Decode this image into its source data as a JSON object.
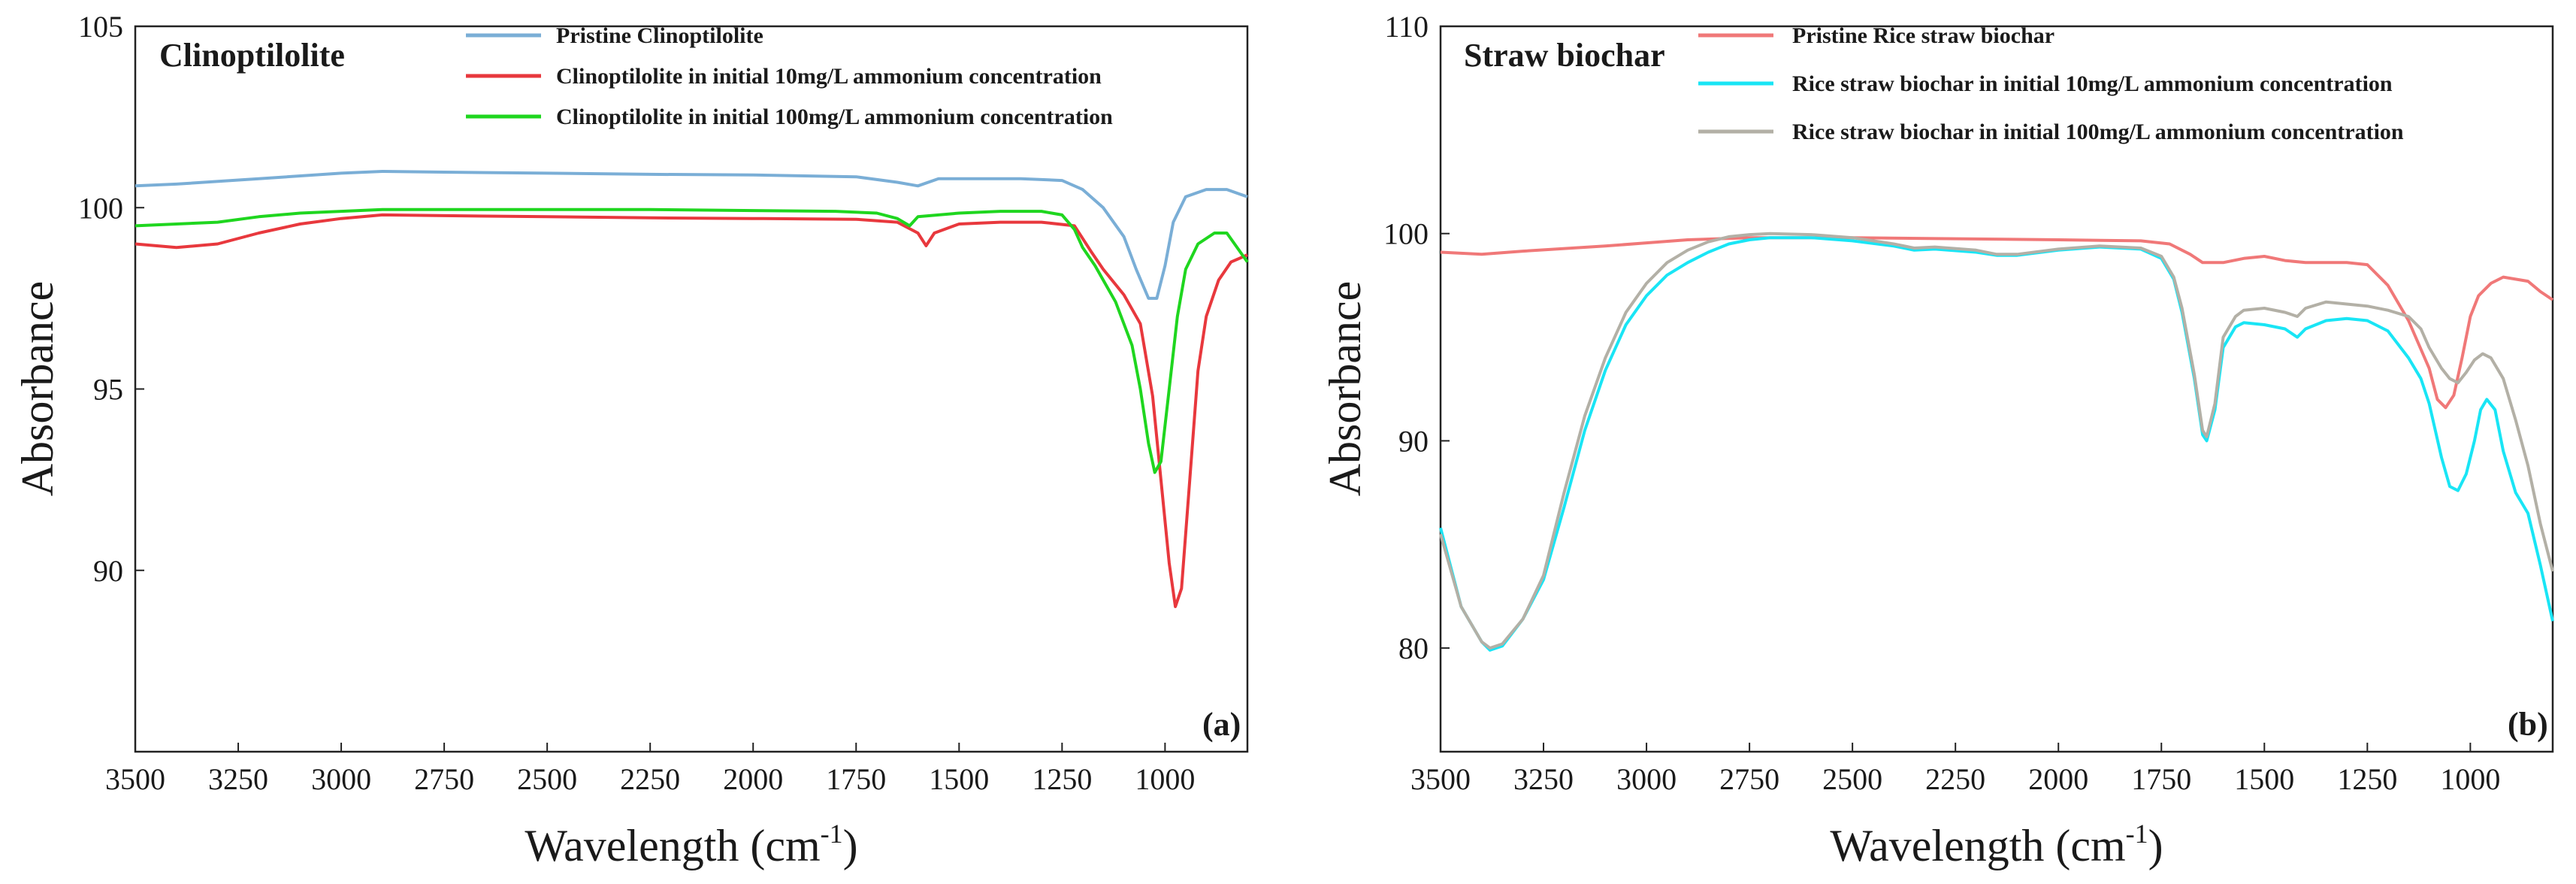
{
  "chart_data": [
    {
      "type": "line",
      "panel_label": "(a)",
      "title": "Clinoptilolite",
      "xlabel": "Wavelength (cm",
      "xlabel_sup": "-1",
      "xlabel_close": ")",
      "ylabel": "Absorbance",
      "xlim": [
        3500,
        800
      ],
      "ylim": [
        85,
        105
      ],
      "xticks": [
        3500,
        3250,
        3000,
        2750,
        2500,
        2250,
        2000,
        1750,
        1500,
        1250,
        1000
      ],
      "yticks": [
        90,
        95,
        100,
        105
      ],
      "legend_position": "top-right",
      "series": [
        {
          "name": "Pristine Clinoptilolite",
          "color": "#7aaed6",
          "points": [
            [
              3500,
              100.6
            ],
            [
              3400,
              100.65
            ],
            [
              3200,
              100.8
            ],
            [
              3000,
              100.95
            ],
            [
              2900,
              101.0
            ],
            [
              2750,
              100.98
            ],
            [
              2500,
              100.95
            ],
            [
              2250,
              100.92
            ],
            [
              2000,
              100.9
            ],
            [
              1750,
              100.85
            ],
            [
              1650,
              100.7
            ],
            [
              1600,
              100.6
            ],
            [
              1550,
              100.8
            ],
            [
              1450,
              100.8
            ],
            [
              1350,
              100.8
            ],
            [
              1250,
              100.75
            ],
            [
              1200,
              100.5
            ],
            [
              1150,
              100.0
            ],
            [
              1100,
              99.2
            ],
            [
              1070,
              98.3
            ],
            [
              1040,
              97.5
            ],
            [
              1020,
              97.5
            ],
            [
              1000,
              98.4
            ],
            [
              980,
              99.6
            ],
            [
              950,
              100.3
            ],
            [
              900,
              100.5
            ],
            [
              850,
              100.5
            ],
            [
              800,
              100.3
            ]
          ]
        },
        {
          "name": "Clinoptilolite in initial 10mg/L ammonium concentration",
          "color": "#e8383d",
          "points": [
            [
              3500,
              99.0
            ],
            [
              3400,
              98.9
            ],
            [
              3300,
              99.0
            ],
            [
              3200,
              99.3
            ],
            [
              3100,
              99.55
            ],
            [
              3000,
              99.7
            ],
            [
              2900,
              99.8
            ],
            [
              2750,
              99.78
            ],
            [
              2500,
              99.75
            ],
            [
              2250,
              99.72
            ],
            [
              2000,
              99.7
            ],
            [
              1750,
              99.68
            ],
            [
              1650,
              99.6
            ],
            [
              1600,
              99.3
            ],
            [
              1580,
              98.95
            ],
            [
              1560,
              99.3
            ],
            [
              1500,
              99.55
            ],
            [
              1400,
              99.6
            ],
            [
              1300,
              99.6
            ],
            [
              1220,
              99.5
            ],
            [
              1180,
              98.8
            ],
            [
              1150,
              98.3
            ],
            [
              1100,
              97.6
            ],
            [
              1060,
              96.8
            ],
            [
              1030,
              94.8
            ],
            [
              1010,
              92.5
            ],
            [
              990,
              90.2
            ],
            [
              975,
              89.0
            ],
            [
              960,
              89.5
            ],
            [
              940,
              92.5
            ],
            [
              920,
              95.5
            ],
            [
              900,
              97.0
            ],
            [
              870,
              98.0
            ],
            [
              840,
              98.5
            ],
            [
              800,
              98.7
            ]
          ]
        },
        {
          "name": "Clinoptilolite in initial 100mg/L ammonium concentration",
          "color": "#1fd61f",
          "points": [
            [
              3500,
              99.5
            ],
            [
              3400,
              99.55
            ],
            [
              3300,
              99.6
            ],
            [
              3200,
              99.75
            ],
            [
              3100,
              99.85
            ],
            [
              3000,
              99.9
            ],
            [
              2900,
              99.95
            ],
            [
              2750,
              99.95
            ],
            [
              2500,
              99.95
            ],
            [
              2250,
              99.95
            ],
            [
              2000,
              99.92
            ],
            [
              1800,
              99.9
            ],
            [
              1700,
              99.85
            ],
            [
              1650,
              99.7
            ],
            [
              1620,
              99.5
            ],
            [
              1600,
              99.75
            ],
            [
              1500,
              99.85
            ],
            [
              1400,
              99.9
            ],
            [
              1300,
              99.9
            ],
            [
              1250,
              99.8
            ],
            [
              1220,
              99.4
            ],
            [
              1200,
              98.9
            ],
            [
              1170,
              98.4
            ],
            [
              1120,
              97.4
            ],
            [
              1080,
              96.2
            ],
            [
              1060,
              95.0
            ],
            [
              1040,
              93.5
            ],
            [
              1025,
              92.7
            ],
            [
              1010,
              93.0
            ],
            [
              990,
              95.0
            ],
            [
              970,
              97.0
            ],
            [
              950,
              98.3
            ],
            [
              920,
              99.0
            ],
            [
              880,
              99.3
            ],
            [
              850,
              99.3
            ],
            [
              800,
              98.5
            ]
          ]
        }
      ]
    },
    {
      "type": "line",
      "panel_label": "(b)",
      "title": "Straw biochar",
      "xlabel": "Wavelength (cm",
      "xlabel_sup": "-1",
      "xlabel_close": ")",
      "ylabel": "Absorbance",
      "xlim": [
        3500,
        800
      ],
      "ylim": [
        75,
        110
      ],
      "xticks": [
        3500,
        3250,
        3000,
        2750,
        2500,
        2250,
        2000,
        1750,
        1500,
        1250,
        1000
      ],
      "yticks": [
        80,
        90,
        100,
        110
      ],
      "legend_position": "top-right",
      "series": [
        {
          "name": "Pristine Rice straw biochar",
          "color": "#f07878",
          "points": [
            [
              3500,
              99.1
            ],
            [
              3400,
              99.0
            ],
            [
              3300,
              99.15
            ],
            [
              3100,
              99.4
            ],
            [
              3000,
              99.55
            ],
            [
              2900,
              99.7
            ],
            [
              2750,
              99.8
            ],
            [
              2500,
              99.8
            ],
            [
              2250,
              99.75
            ],
            [
              2000,
              99.7
            ],
            [
              1800,
              99.65
            ],
            [
              1730,
              99.5
            ],
            [
              1680,
              99.0
            ],
            [
              1650,
              98.6
            ],
            [
              1600,
              98.6
            ],
            [
              1550,
              98.8
            ],
            [
              1500,
              98.9
            ],
            [
              1450,
              98.7
            ],
            [
              1400,
              98.6
            ],
            [
              1300,
              98.6
            ],
            [
              1250,
              98.5
            ],
            [
              1200,
              97.5
            ],
            [
              1150,
              95.8
            ],
            [
              1100,
              93.5
            ],
            [
              1080,
              92.0
            ],
            [
              1060,
              91.6
            ],
            [
              1040,
              92.2
            ],
            [
              1020,
              94.0
            ],
            [
              1000,
              96.0
            ],
            [
              980,
              97.0
            ],
            [
              950,
              97.6
            ],
            [
              920,
              97.9
            ],
            [
              890,
              97.8
            ],
            [
              860,
              97.7
            ],
            [
              830,
              97.2
            ],
            [
              800,
              96.8
            ]
          ]
        },
        {
          "name": "Rice straw biochar in initial 10mg/L ammonium concentration",
          "color": "#19e5f5",
          "points": [
            [
              3500,
              85.8
            ],
            [
              3450,
              82.0
            ],
            [
              3400,
              80.3
            ],
            [
              3380,
              79.9
            ],
            [
              3350,
              80.1
            ],
            [
              3300,
              81.4
            ],
            [
              3250,
              83.3
            ],
            [
              3200,
              86.8
            ],
            [
              3150,
              90.5
            ],
            [
              3100,
              93.4
            ],
            [
              3050,
              95.6
            ],
            [
              3000,
              97.0
            ],
            [
              2950,
              98.0
            ],
            [
              2900,
              98.6
            ],
            [
              2850,
              99.1
            ],
            [
              2800,
              99.5
            ],
            [
              2750,
              99.7
            ],
            [
              2700,
              99.8
            ],
            [
              2600,
              99.8
            ],
            [
              2500,
              99.65
            ],
            [
              2400,
              99.4
            ],
            [
              2350,
              99.2
            ],
            [
              2300,
              99.25
            ],
            [
              2200,
              99.1
            ],
            [
              2150,
              98.95
            ],
            [
              2100,
              98.95
            ],
            [
              2000,
              99.2
            ],
            [
              1900,
              99.35
            ],
            [
              1800,
              99.25
            ],
            [
              1750,
              98.8
            ],
            [
              1720,
              97.8
            ],
            [
              1700,
              96.2
            ],
            [
              1670,
              93.0
            ],
            [
              1650,
              90.3
            ],
            [
              1640,
              90.0
            ],
            [
              1620,
              91.5
            ],
            [
              1600,
              94.5
            ],
            [
              1570,
              95.5
            ],
            [
              1550,
              95.7
            ],
            [
              1500,
              95.6
            ],
            [
              1450,
              95.4
            ],
            [
              1420,
              95.0
            ],
            [
              1400,
              95.4
            ],
            [
              1350,
              95.8
            ],
            [
              1300,
              95.9
            ],
            [
              1250,
              95.8
            ],
            [
              1200,
              95.3
            ],
            [
              1150,
              94.0
            ],
            [
              1120,
              93.0
            ],
            [
              1100,
              91.8
            ],
            [
              1070,
              89.2
            ],
            [
              1050,
              87.8
            ],
            [
              1030,
              87.6
            ],
            [
              1010,
              88.4
            ],
            [
              990,
              90.0
            ],
            [
              975,
              91.5
            ],
            [
              960,
              92.0
            ],
            [
              940,
              91.5
            ],
            [
              920,
              89.5
            ],
            [
              890,
              87.5
            ],
            [
              860,
              86.5
            ],
            [
              830,
              84.0
            ],
            [
              800,
              81.3
            ]
          ]
        },
        {
          "name": "Rice straw biochar in initial 100mg/L ammonium concentration",
          "color": "#b3b0a6",
          "points": [
            [
              3500,
              85.5
            ],
            [
              3450,
              82.0
            ],
            [
              3400,
              80.3
            ],
            [
              3380,
              80.0
            ],
            [
              3350,
              80.2
            ],
            [
              3300,
              81.4
            ],
            [
              3250,
              83.5
            ],
            [
              3200,
              87.5
            ],
            [
              3150,
              91.2
            ],
            [
              3100,
              94.0
            ],
            [
              3050,
              96.2
            ],
            [
              3000,
              97.6
            ],
            [
              2950,
              98.6
            ],
            [
              2900,
              99.2
            ],
            [
              2850,
              99.6
            ],
            [
              2800,
              99.85
            ],
            [
              2750,
              99.95
            ],
            [
              2700,
              100.0
            ],
            [
              2600,
              99.95
            ],
            [
              2500,
              99.8
            ],
            [
              2400,
              99.5
            ],
            [
              2350,
              99.3
            ],
            [
              2300,
              99.35
            ],
            [
              2200,
              99.2
            ],
            [
              2150,
              99.0
            ],
            [
              2100,
              99.0
            ],
            [
              2000,
              99.25
            ],
            [
              1900,
              99.4
            ],
            [
              1800,
              99.3
            ],
            [
              1750,
              98.9
            ],
            [
              1720,
              97.9
            ],
            [
              1700,
              96.4
            ],
            [
              1670,
              93.2
            ],
            [
              1650,
              90.5
            ],
            [
              1640,
              90.2
            ],
            [
              1620,
              91.8
            ],
            [
              1600,
              95.0
            ],
            [
              1570,
              96.0
            ],
            [
              1550,
              96.3
            ],
            [
              1500,
              96.4
            ],
            [
              1450,
              96.2
            ],
            [
              1420,
              96.0
            ],
            [
              1400,
              96.4
            ],
            [
              1350,
              96.7
            ],
            [
              1300,
              96.6
            ],
            [
              1250,
              96.5
            ],
            [
              1200,
              96.3
            ],
            [
              1150,
              96.0
            ],
            [
              1120,
              95.4
            ],
            [
              1100,
              94.5
            ],
            [
              1070,
              93.5
            ],
            [
              1050,
              93.0
            ],
            [
              1030,
              92.8
            ],
            [
              1010,
              93.3
            ],
            [
              990,
              93.9
            ],
            [
              970,
              94.2
            ],
            [
              950,
              94.0
            ],
            [
              920,
              93.0
            ],
            [
              890,
              91.0
            ],
            [
              860,
              88.8
            ],
            [
              830,
              86.0
            ],
            [
              800,
              83.7
            ]
          ]
        }
      ]
    }
  ]
}
